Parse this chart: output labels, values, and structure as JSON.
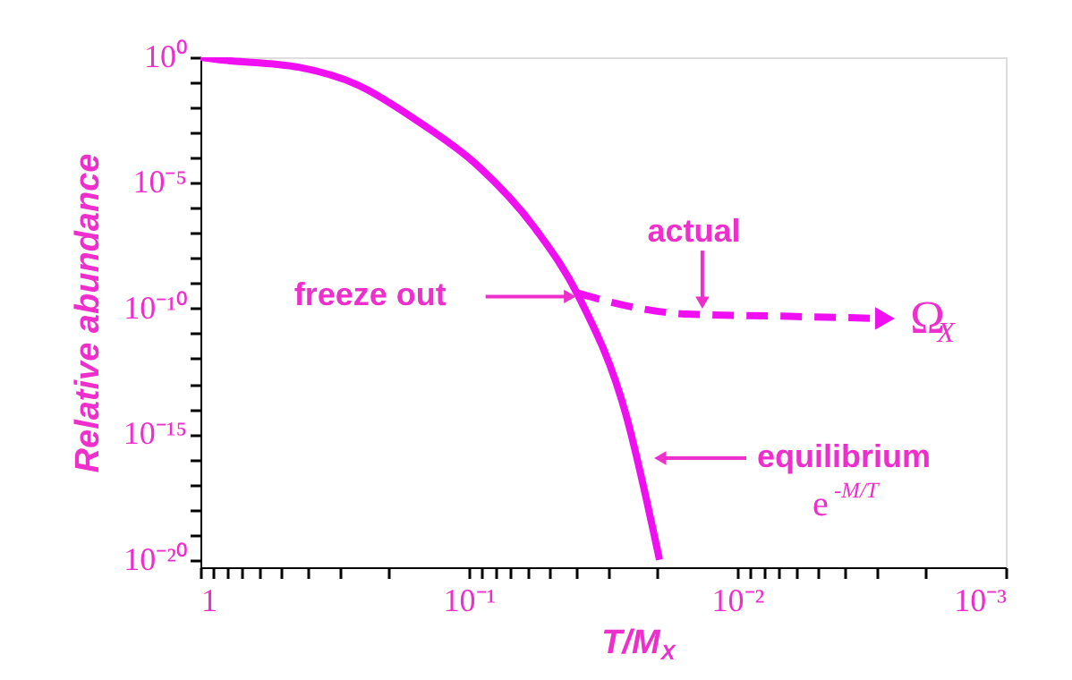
{
  "chart_data": {
    "type": "line",
    "xlabel": "T/M$_{X}$",
    "ylabel": "Relative abundance",
    "log": "xy",
    "xlim": [
      1,
      0.001
    ],
    "ylim": [
      5e-21,
      1
    ],
    "xticks": [
      {
        "value": 1,
        "label": "1"
      },
      {
        "value": 0.9,
        "label": null
      },
      {
        "value": 0.8,
        "label": null
      },
      {
        "value": 0.7,
        "label": null
      },
      {
        "value": 0.6,
        "label": null
      },
      {
        "value": 0.5,
        "label": null
      },
      {
        "value": 0.4,
        "label": null
      },
      {
        "value": 0.3,
        "label": null
      },
      {
        "value": 0.2,
        "label": null
      },
      {
        "value": 0.1,
        "label": "10⁻¹"
      },
      {
        "value": 0.09,
        "label": null
      },
      {
        "value": 0.08,
        "label": null
      },
      {
        "value": 0.07,
        "label": null
      },
      {
        "value": 0.06,
        "label": null
      },
      {
        "value": 0.05,
        "label": null
      },
      {
        "value": 0.04,
        "label": null
      },
      {
        "value": 0.03,
        "label": null
      },
      {
        "value": 0.02,
        "label": null
      },
      {
        "value": 0.01,
        "label": "10⁻²"
      },
      {
        "value": 0.009,
        "label": null
      },
      {
        "value": 0.008,
        "label": null
      },
      {
        "value": 0.007,
        "label": null
      },
      {
        "value": 0.006,
        "label": null
      },
      {
        "value": 0.005,
        "label": null
      },
      {
        "value": 0.004,
        "label": null
      },
      {
        "value": 0.003,
        "label": null
      },
      {
        "value": 0.002,
        "label": null
      },
      {
        "value": 0.001,
        "label": "10⁻³"
      }
    ],
    "yticks": [
      {
        "value": 1,
        "label": "10⁰"
      },
      {
        "value": 0.1,
        "label": null
      },
      {
        "value": 0.01,
        "label": null
      },
      {
        "value": 0.001,
        "label": null
      },
      {
        "value": 0.0001,
        "label": null
      },
      {
        "value": 1e-05,
        "label": "10⁻⁵"
      },
      {
        "value": 1e-06,
        "label": null
      },
      {
        "value": 1e-07,
        "label": null
      },
      {
        "value": 1e-08,
        "label": null
      },
      {
        "value": 1e-09,
        "label": null
      },
      {
        "value": 1e-10,
        "label": "10⁻¹⁰"
      },
      {
        "value": 1e-11,
        "label": null
      },
      {
        "value": 1e-12,
        "label": null
      },
      {
        "value": 1e-13,
        "label": null
      },
      {
        "value": 1e-14,
        "label": null
      },
      {
        "value": 1e-15,
        "label": "10⁻¹⁵"
      },
      {
        "value": 1e-16,
        "label": null
      },
      {
        "value": 1e-17,
        "label": null
      },
      {
        "value": 1e-18,
        "label": null
      },
      {
        "value": 1e-19,
        "label": null
      },
      {
        "value": 1e-20,
        "label": "10⁻²⁰"
      }
    ],
    "series": [
      {
        "color": "#f00ff0",
        "line_style": "solid",
        "x": [
          1,
          0.85,
          0.43,
          0.26,
          0.156,
          0.093,
          0.056,
          0.039,
          0.026,
          0.0195
        ],
        "values": [
          1,
          0.8,
          0.4,
          0.08,
          0.003,
          5e-05,
          1.3e-07,
          3e-10,
          6e-15,
          1e-20
        ]
      },
      {
        "color": "#f00ff0",
        "line_style": "dashed",
        "x": [
          0.039,
          0.026,
          0.0155,
          0.0072,
          0.0029
        ],
        "values": [
          4e-10,
          1.3e-10,
          6e-11,
          5e-11,
          4e-11
        ]
      }
    ],
    "annotations": [
      {
        "text": "freeze out",
        "x": 0.039,
        "y": 3e-10
      },
      {
        "text": "actual",
        "x": 0.0135,
        "y": 5.5e-11
      },
      "equilibrium",
      "e$^{-M/T}$",
      {
        "text": "Ω$_{X}$",
        "x": 0.0029,
        "y": 4e-11
      }
    ]
  }
}
